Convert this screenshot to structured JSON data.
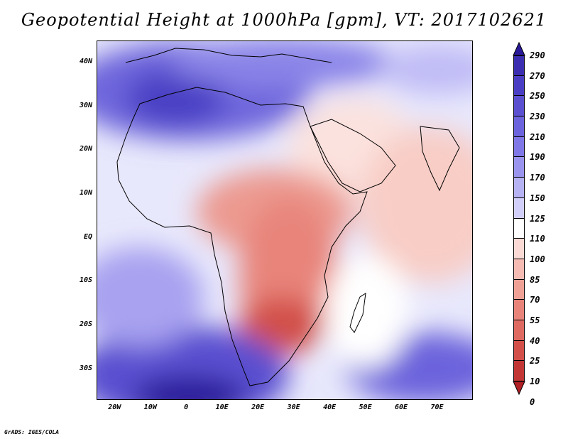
{
  "title": "Geopotential Height at 1000hPa [gpm], VT: 2017102621",
  "credit": "GrADS: IGES/COLA",
  "map": {
    "lon_range": [
      -25,
      80
    ],
    "lat_range": [
      -37,
      45
    ],
    "y_ticks": [
      {
        "label": "40N",
        "lat": 40
      },
      {
        "label": "30N",
        "lat": 30
      },
      {
        "label": "20N",
        "lat": 20
      },
      {
        "label": "10N",
        "lat": 10
      },
      {
        "label": "EQ",
        "lat": 0
      },
      {
        "label": "10S",
        "lat": -10
      },
      {
        "label": "20S",
        "lat": -20
      },
      {
        "label": "30S",
        "lat": -30
      }
    ],
    "x_ticks": [
      {
        "label": "20W",
        "lon": -20
      },
      {
        "label": "10W",
        "lon": -10
      },
      {
        "label": "0",
        "lon": 0
      },
      {
        "label": "10E",
        "lon": 10
      },
      {
        "label": "20E",
        "lon": 20
      },
      {
        "label": "30E",
        "lon": 30
      },
      {
        "label": "40E",
        "lon": 40
      },
      {
        "label": "50E",
        "lon": 50
      },
      {
        "label": "60E",
        "lon": 60
      },
      {
        "label": "70E",
        "lon": 70
      }
    ]
  },
  "colorbar": {
    "levels": [
      "290",
      "270",
      "250",
      "230",
      "210",
      "190",
      "170",
      "150",
      "125",
      "110",
      "100",
      "85",
      "70",
      "55",
      "40",
      "25",
      "10",
      "0"
    ],
    "colors": [
      "#2a1a9a",
      "#3b2eb0",
      "#4a3fc4",
      "#5a50d0",
      "#6c64dc",
      "#8078e6",
      "#9a94ee",
      "#b6b2f4",
      "#d2d0fa",
      "#ffffff",
      "#fbdad6",
      "#f6bcb4",
      "#f0a196",
      "#e8847a",
      "#de6a62",
      "#d24f4a",
      "#c33636",
      "#b01f24"
    ]
  }
}
